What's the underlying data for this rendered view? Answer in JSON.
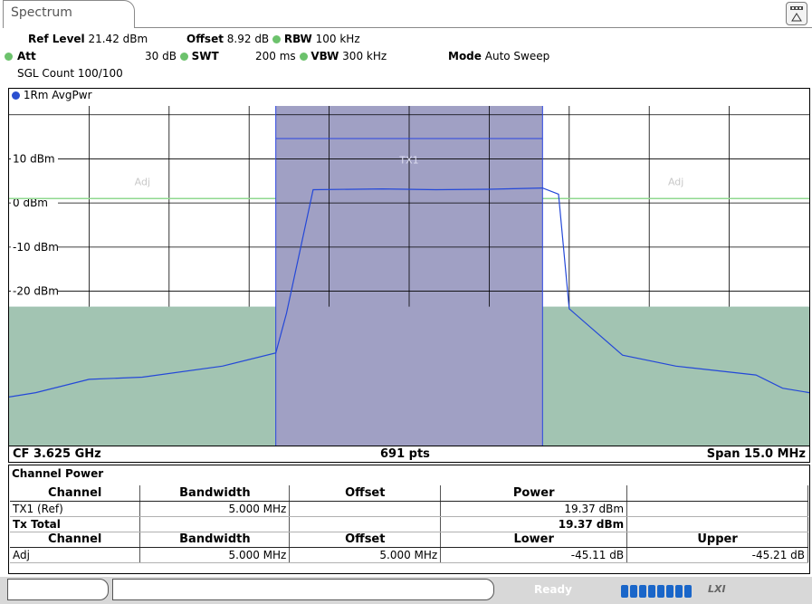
{
  "window": {
    "tab_label": "Spectrum"
  },
  "toolbar": {
    "menu_icon": "menu-triangle-icon"
  },
  "params": {
    "ref_level_label": "Ref Level",
    "ref_level_value": "21.42 dBm",
    "offset_label": "Offset",
    "offset_value": "8.92 dB",
    "rbw_label": "RBW",
    "rbw_value": "100 kHz",
    "att_label": "Att",
    "att_value": "30 dB",
    "swt_label": "SWT",
    "swt_value": "200 ms",
    "vbw_label": "VBW",
    "vbw_value": "300 kHz",
    "mode_label": "Mode",
    "mode_value": "Auto Sweep",
    "sgl_count": "SGL Count 100/100"
  },
  "trace": {
    "label": "1Rm AvgPwr",
    "color": "#2a4fd0"
  },
  "plot": {
    "ylabels": [
      "10 dBm",
      "0 dBm",
      "-10 dBm",
      "-20 dBm"
    ],
    "tx_label": "TX1",
    "adj_left": "Adj",
    "adj_right": "Adj",
    "colors": {
      "tx_band": "#a0a0c4",
      "adj_band": "#a2c4b2",
      "limit": "#90d890",
      "trace": "#2448d8"
    }
  },
  "chart_data": {
    "type": "line",
    "x": [
      3617.5,
      3618.0,
      3619.0,
      3620.0,
      3621.5,
      3622.5,
      3622.7,
      3623.2,
      3624.5,
      3625.5,
      3626.5,
      3627.5,
      3627.8,
      3628.0,
      3629.0,
      3630.0,
      3631.5,
      3632.0,
      3632.5
    ],
    "y": [
      -44.0,
      -43.0,
      -40.0,
      -39.5,
      -37.0,
      -34.0,
      -25.0,
      3.0,
      3.2,
      3.0,
      3.1,
      3.4,
      2.0,
      -24.0,
      -34.5,
      -37.0,
      -39.0,
      -42.0,
      -43.0
    ],
    "xlabel": "",
    "ylabel": "",
    "ylim": [
      -55.0,
      22.0
    ],
    "xlim": [
      3617.5,
      3632.5
    ],
    "grid": true
  },
  "footer": {
    "cf": "CF 3.625 GHz",
    "pts": "691 pts",
    "span": "Span 15.0 MHz"
  },
  "table": {
    "title": "Channel Power",
    "headers1": [
      "Channel",
      "Bandwidth",
      "Offset",
      "Power",
      ""
    ],
    "row1": [
      "TX1 (Ref)",
      "5.000 MHz",
      "",
      "19.37 dBm",
      ""
    ],
    "row2": [
      "Tx Total",
      "",
      "",
      "19.37 dBm",
      ""
    ],
    "headers2": [
      "Channel",
      "Bandwidth",
      "Offset",
      "Lower",
      "Upper"
    ],
    "row3": [
      "Adj",
      "5.000 MHz",
      "5.000 MHz",
      "-45.11 dB",
      "-45.21 dB"
    ]
  },
  "status": {
    "ready": "Ready",
    "lxi": "LXI",
    "progress_fraction": 1.0
  }
}
